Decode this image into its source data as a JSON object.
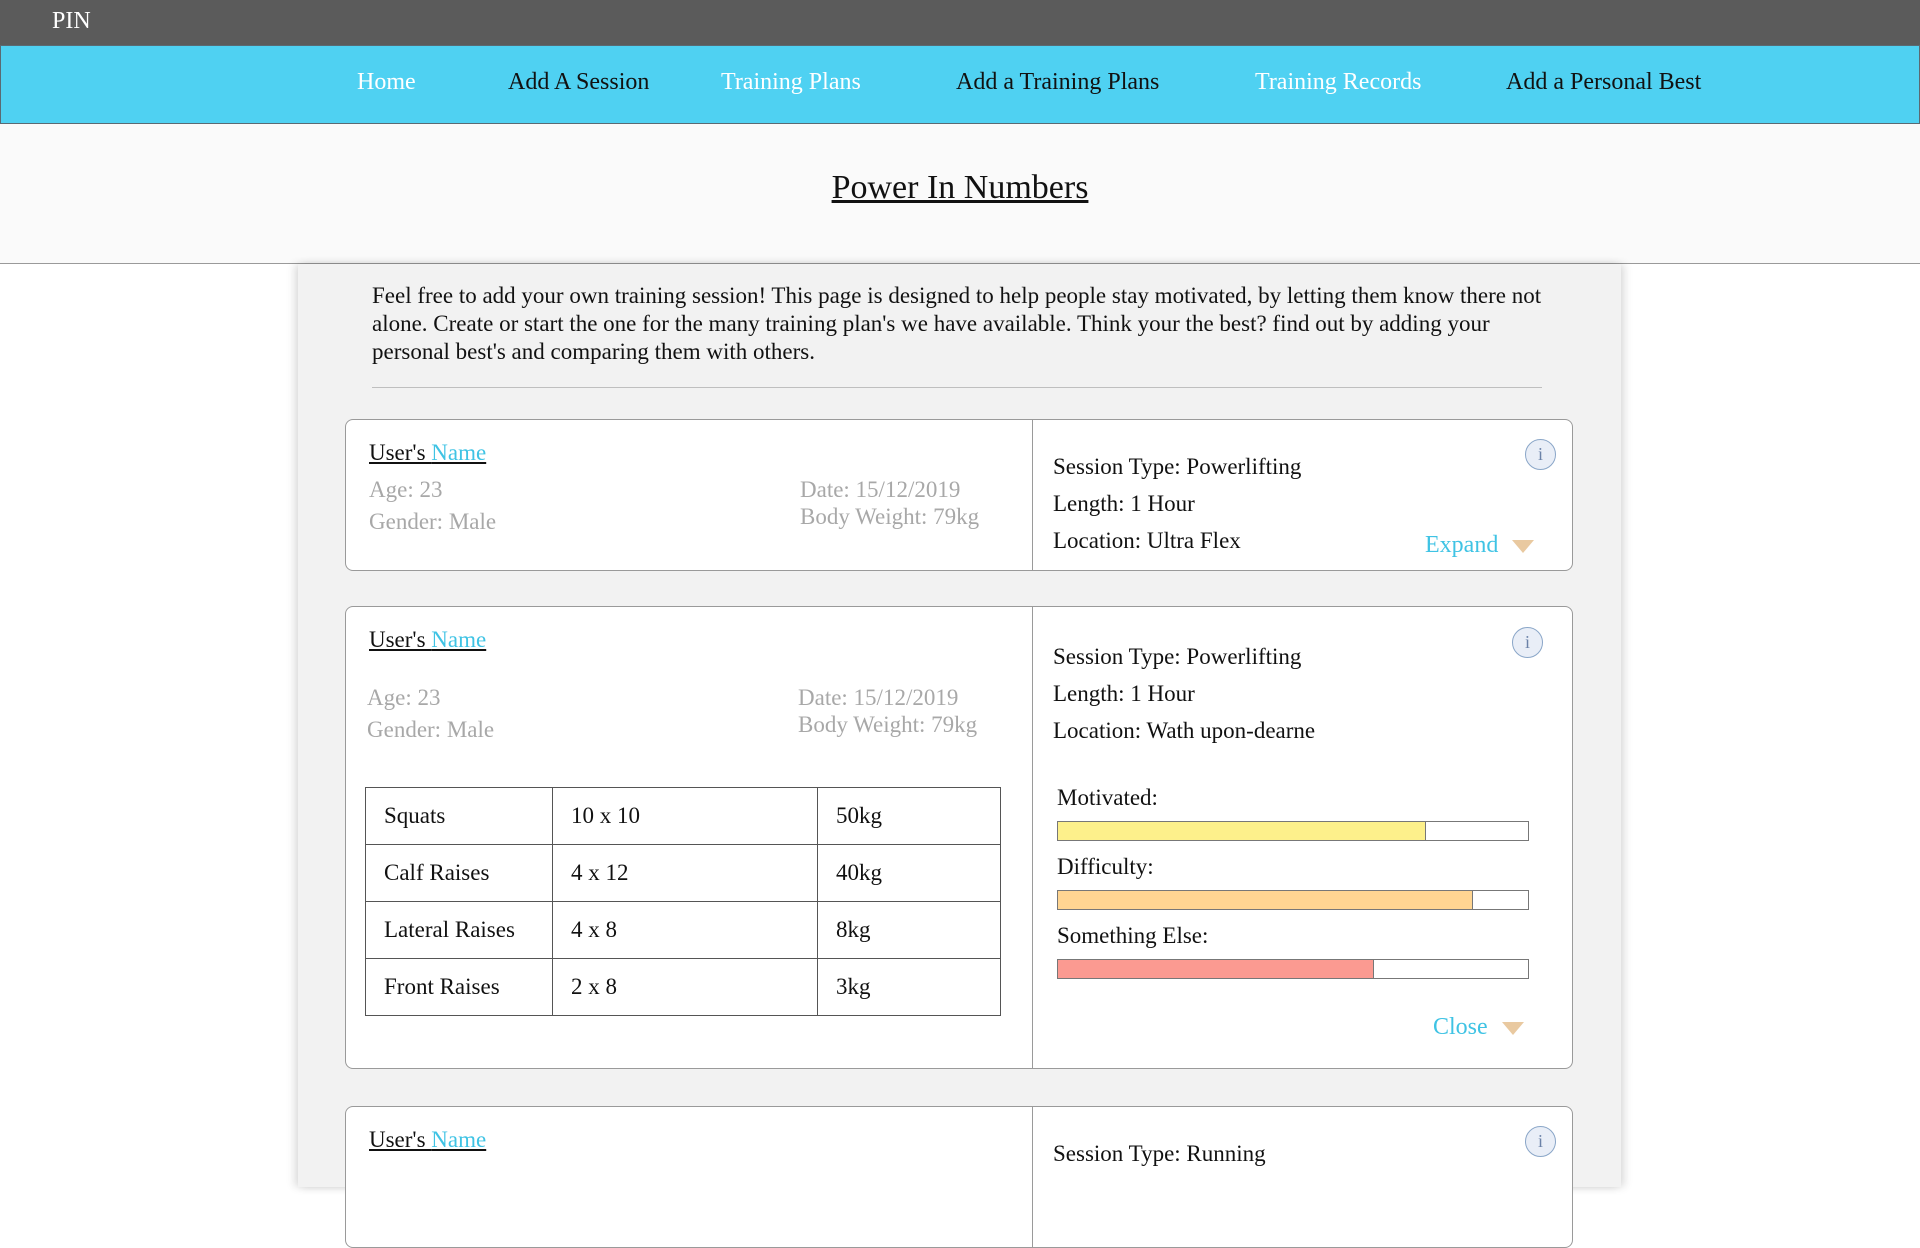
{
  "app": {
    "brand": "PIN"
  },
  "nav": {
    "items": [
      {
        "label": "Home"
      },
      {
        "label": "Add A Session"
      },
      {
        "label": "Training Plans"
      },
      {
        "label": "Add a Training Plans"
      },
      {
        "label": "Training Records"
      },
      {
        "label": "Add a Personal Best"
      }
    ]
  },
  "header": {
    "title": "Power In Numbers"
  },
  "intro": {
    "text": "Feel free to add your own training session! This page is designed to help people stay motivated, by letting them know there not alone. Create or start the one for the many training plan's we have available. Think your the best? find out by adding your personal best's and comparing them with others."
  },
  "sessions": [
    {
      "user_prefix": "User's ",
      "user_name": "Name",
      "age": "Age: 23",
      "gender": "Gender: Male",
      "date": "Date: 15/12/2019",
      "body_weight": "Body Weight: 79kg",
      "session_type": "Session Type: Powerlifting",
      "length": "Length: 1 Hour",
      "location": "Location: Ultra Flex",
      "info_icon": "i",
      "toggle_label": "Expand"
    },
    {
      "user_prefix": "User's ",
      "user_name": "Name",
      "age": "Age: 23",
      "gender": "Gender: Male",
      "date": "Date: 15/12/2019",
      "body_weight": "Body Weight: 79kg",
      "session_type": "Session Type: Powerlifting",
      "length": "Length: 1 Hour",
      "location": "Location: Wath upon-dearne",
      "info_icon": "i",
      "toggle_label": "Close",
      "exercises": [
        {
          "name": "Squats",
          "sets": "10 x 10",
          "weight": "50kg"
        },
        {
          "name": "Calf Raises",
          "sets": "4 x 12",
          "weight": "40kg"
        },
        {
          "name": "Lateral Raises",
          "sets": "4 x 8",
          "weight": "8kg"
        },
        {
          "name": "Front Raises",
          "sets": "2 x 8",
          "weight": "3kg"
        }
      ],
      "ratings": [
        {
          "label": "Motivated:",
          "value": 0.78,
          "color": "#fdf08b"
        },
        {
          "label": "Difficulty:",
          "value": 0.88,
          "color": "#ffd592"
        },
        {
          "label": "Something Else:",
          "value": 0.67,
          "color": "#fb9a91"
        }
      ]
    },
    {
      "user_prefix": "User's ",
      "user_name": "Name",
      "session_type": "Session Type: Running",
      "info_icon": "i"
    }
  ]
}
